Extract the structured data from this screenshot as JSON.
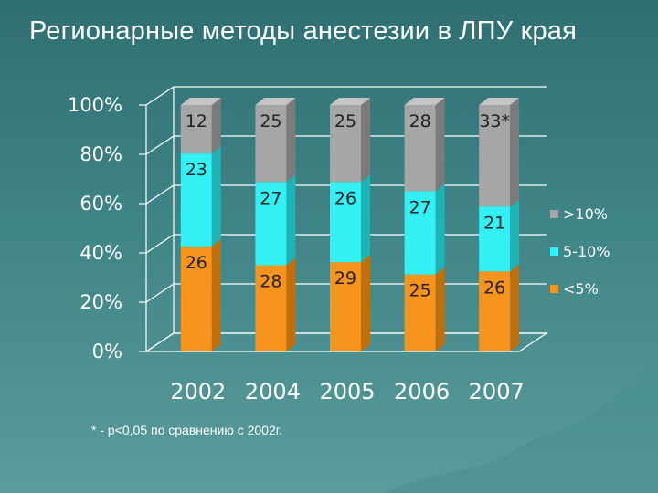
{
  "title": "Регионарные методы анестезии в ЛПУ края",
  "footnote": "* - р<0,05 по сравнению с 2002г.",
  "chart_data": {
    "type": "stacked-bar-100",
    "categories": [
      "2002",
      "2004",
      "2005",
      "2006",
      "2007"
    ],
    "series": [
      {
        "name": "<5%",
        "color": "#f7941d",
        "side": "#c06f0e",
        "top": "#f9ad55",
        "values": [
          26,
          28,
          29,
          25,
          26
        ],
        "labels": [
          "26",
          "28",
          "29",
          "25",
          "26"
        ]
      },
      {
        "name": "5-10%",
        "color": "#33f0f4",
        "side": "#1fb3b6",
        "top": "#7ff6f8",
        "values": [
          23,
          27,
          26,
          27,
          21
        ],
        "labels": [
          "23",
          "27",
          "26",
          "27",
          "21"
        ]
      },
      {
        "name": ">10%",
        "color": "#a6a6a6",
        "side": "#7b7b7b",
        "top": "#c4c4c4",
        "values": [
          12,
          25,
          25,
          28,
          33
        ],
        "labels": [
          "12",
          "25",
          "25",
          "28",
          "33*"
        ]
      }
    ],
    "y_ticks": [
      "0%",
      "20%",
      "40%",
      "60%",
      "80%",
      "100%"
    ],
    "ylim": [
      0,
      100
    ],
    "legend_order": [
      ">10%",
      "5-10%",
      "<5%"
    ],
    "legend_position": "right",
    "grid": true
  }
}
